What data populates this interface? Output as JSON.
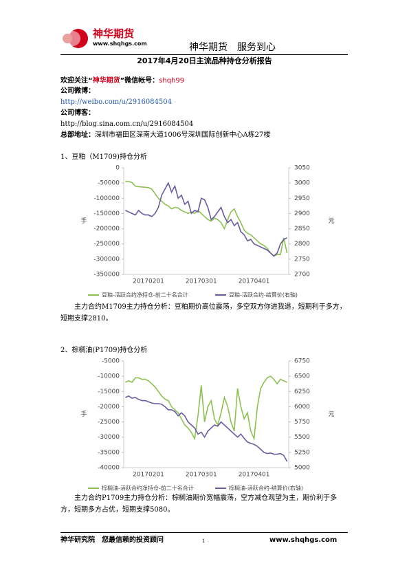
{
  "header": {
    "logo_name": "神华期货",
    "logo_url": "www.shqhgs.com",
    "slogan": "神华期货　服务到心"
  },
  "title": "2017年4月20日主流品种持仓分析报告",
  "contact": {
    "follow_prefix": "欢迎关注“",
    "follow_brand": "神华期货",
    "follow_mid": "”微信帐号：",
    "wechat": "shqh99",
    "weibo_label": "公司微博：",
    "weibo_url": "http://weibo.com/u/2916084504",
    "blog_label": "公司博客：",
    "blog_url": "http://blog.sina.com.cn/u/2916084504",
    "address_label": "总部地址：",
    "address": "深圳市福田区深南大道1006号深圳国际创新中心A栋27楼"
  },
  "sections": [
    {
      "heading": "1、豆粕（M1709)持仓分析",
      "text": "主力合约M1709主力持仓分析：豆粕期价高位震荡，多空双方你进我退，短期利于多方，短期支撑2810。"
    },
    {
      "heading": "2、棕榈油(P1709)持仓分析",
      "text": "主力合约P1709主力持仓分析：棕榈油期价宽幅震荡，空方减仓观望为主，期价利于多方，短期多方占优，短期支撑5080。"
    }
  ],
  "footer": {
    "left": "神华研究院　您最信赖的投资顾问",
    "page": "1",
    "right": "www.shqhgs.com"
  },
  "chart_data": [
    {
      "type": "line",
      "ylabel": "手",
      "y2label": "元",
      "categories": [
        null,
        null,
        null,
        null,
        null,
        null,
        null,
        "20170201",
        null,
        null,
        null,
        null,
        null,
        null,
        null,
        null,
        null,
        null,
        null,
        null,
        null,
        null,
        null,
        "20170301",
        null,
        null,
        null,
        null,
        null,
        null,
        null,
        null,
        null,
        null,
        null,
        null,
        null,
        null,
        null,
        "20170401",
        null,
        null,
        null,
        null,
        null,
        null,
        null,
        null,
        null,
        null
      ],
      "ylim": [
        -350000,
        0
      ],
      "yticks": [
        0,
        -50000,
        -100000,
        -150000,
        -200000,
        -250000,
        -300000,
        -350000
      ],
      "y2lim": [
        2700,
        3050
      ],
      "y2ticks": [
        3050,
        3000,
        2950,
        2900,
        2850,
        2800,
        2750,
        2700
      ],
      "series": [
        {
          "name": "豆粕-活跃合约净持仓-前二十名合计",
          "color": "#8cc152",
          "values": [
            -45000,
            -45000,
            -48000,
            -60000,
            -62000,
            -63000,
            -64000,
            -65000,
            -70000,
            -85000,
            -100000,
            -110000,
            -120000,
            -125000,
            -135000,
            -130000,
            -132000,
            -140000,
            -145000,
            -150000,
            -145000,
            -150000,
            -140000,
            -150000,
            -160000,
            -170000,
            -175000,
            -165000,
            -170000,
            -180000,
            -200000,
            -170000,
            -145000,
            -135000,
            -160000,
            -180000,
            -205000,
            -215000,
            -220000,
            -230000,
            -240000,
            -250000,
            -255000,
            -265000,
            -280000,
            -290000,
            -285000,
            -285000,
            -230000,
            -280000
          ]
        },
        {
          "name": "豆粕-活跃合约-结算价(右轴)",
          "color": "#6a5a9e",
          "axis": "y2",
          "values": [
            2910,
            2905,
            2900,
            2895,
            2910,
            2900,
            2895,
            2895,
            2890,
            2900,
            2920,
            2960,
            2980,
            3000,
            2970,
            2990,
            2950,
            2960,
            2930,
            2940,
            2900,
            2910,
            2905,
            2950,
            2945,
            2920,
            2880,
            2890,
            2905,
            2920,
            2890,
            2870,
            2880,
            2860,
            2870,
            2840,
            2830,
            2810,
            2815,
            2800,
            2795,
            2790,
            2785,
            2780,
            2770,
            2760,
            2770,
            2800,
            2815,
            2820
          ]
        }
      ]
    },
    {
      "type": "line",
      "ylabel": "手",
      "y2label": "元",
      "categories": [
        null,
        null,
        null,
        null,
        null,
        null,
        null,
        "20170201",
        null,
        null,
        null,
        null,
        null,
        null,
        null,
        null,
        null,
        null,
        null,
        null,
        null,
        null,
        null,
        "20170301",
        null,
        null,
        null,
        null,
        null,
        null,
        null,
        null,
        null,
        null,
        null,
        null,
        null,
        null,
        null,
        "20170401",
        null,
        null,
        null,
        null,
        null,
        null,
        null,
        null,
        null,
        null
      ],
      "ylim": [
        -40000,
        -5000
      ],
      "yticks": [
        -5000,
        -10000,
        -15000,
        -20000,
        -25000,
        -30000,
        -35000,
        -40000
      ],
      "y2lim": [
        5000,
        6750
      ],
      "y2ticks": [
        6750,
        6500,
        6250,
        6000,
        5750,
        5500,
        5250,
        5000
      ],
      "series": [
        {
          "name": "棕榈油-活跃合约净持仓-前二十名合计",
          "color": "#8cc152",
          "values": [
            -12000,
            -11500,
            -12000,
            -10500,
            -10500,
            -11000,
            -11000,
            -11500,
            -12500,
            -13500,
            -15000,
            -16500,
            -17500,
            -18000,
            -20000,
            -21000,
            -22000,
            -24000,
            -26000,
            -27000,
            -28500,
            -30500,
            -23000,
            -13000,
            -25000,
            -20000,
            -18000,
            -24000,
            -26000,
            -22000,
            -17000,
            -20000,
            -25000,
            -28000,
            -14000,
            -20000,
            -24000,
            -22000,
            -28000,
            -30500,
            -20000,
            -14000,
            -12000,
            -10500,
            -10000,
            -11000,
            -12500,
            -11000,
            -11500,
            -12000
          ]
        },
        {
          "name": "棕榈油-活跃合约-结算价(右轴)",
          "color": "#6a5a9e",
          "axis": "y2",
          "values": [
            6150,
            6175,
            6140,
            6150,
            6120,
            6100,
            6100,
            6080,
            6060,
            6050,
            6050,
            6040,
            6000,
            5950,
            5950,
            5920,
            5850,
            5900,
            5850,
            5750,
            5700,
            5650,
            5550,
            5580,
            5500,
            5600,
            5650,
            5700,
            5680,
            5750,
            5700,
            5650,
            5600,
            5550,
            5500,
            5550,
            5480,
            5420,
            5400,
            5380,
            5350,
            5300,
            5250,
            5230,
            5240,
            5220,
            5220,
            5230,
            5200,
            5100
          ]
        }
      ]
    }
  ]
}
